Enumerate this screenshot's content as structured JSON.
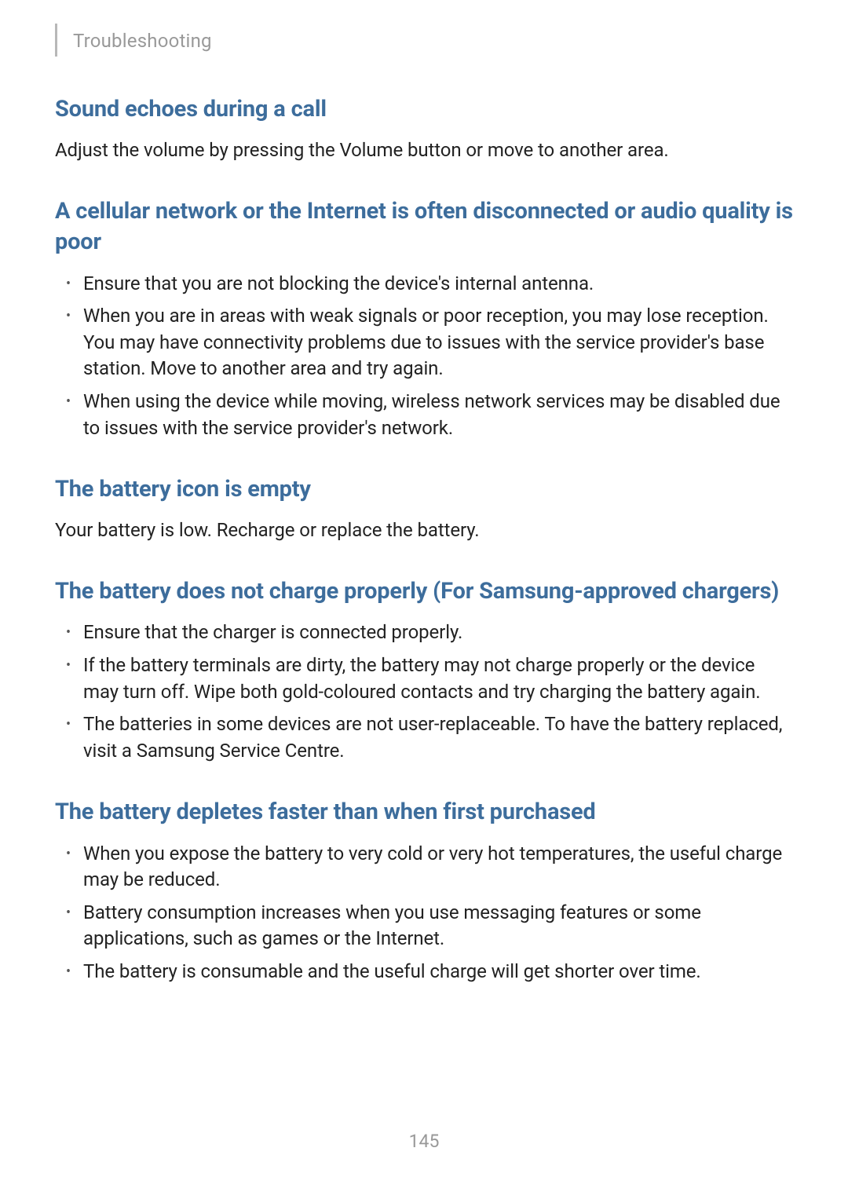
{
  "breadcrumb": "Troubleshooting",
  "page_number": "145",
  "heading_color": "#3d6d9c",
  "body_color": "#222222",
  "muted_color": "#999999",
  "background_color": "#ffffff",
  "sections": [
    {
      "heading": "Sound echoes during a call",
      "body": "Adjust the volume by pressing the Volume button or move to another area.",
      "items": []
    },
    {
      "heading": "A cellular network or the Internet is often disconnected or audio quality is poor",
      "body": "",
      "items": [
        "Ensure that you are not blocking the device's internal antenna.",
        "When you are in areas with weak signals or poor reception, you may lose reception. You may have connectivity problems due to issues with the service provider's base station. Move to another area and try again.",
        "When using the device while moving, wireless network services may be disabled due to issues with the service provider's network."
      ]
    },
    {
      "heading": "The battery icon is empty",
      "body": "Your battery is low. Recharge or replace the battery.",
      "items": []
    },
    {
      "heading": "The battery does not charge properly (For Samsung-approved chargers)",
      "body": "",
      "items": [
        "Ensure that the charger is connected properly.",
        "If the battery terminals are dirty, the battery may not charge properly or the device may turn off. Wipe both gold-coloured contacts and try charging the battery again.",
        "The batteries in some devices are not user-replaceable. To have the battery replaced, visit a Samsung Service Centre."
      ]
    },
    {
      "heading": "The battery depletes faster than when first purchased",
      "body": "",
      "items": [
        "When you expose the battery to very cold or very hot temperatures, the useful charge may be reduced.",
        "Battery consumption increases when you use messaging features or some applications, such as games or the Internet.",
        "The battery is consumable and the useful charge will get shorter over time."
      ]
    }
  ]
}
